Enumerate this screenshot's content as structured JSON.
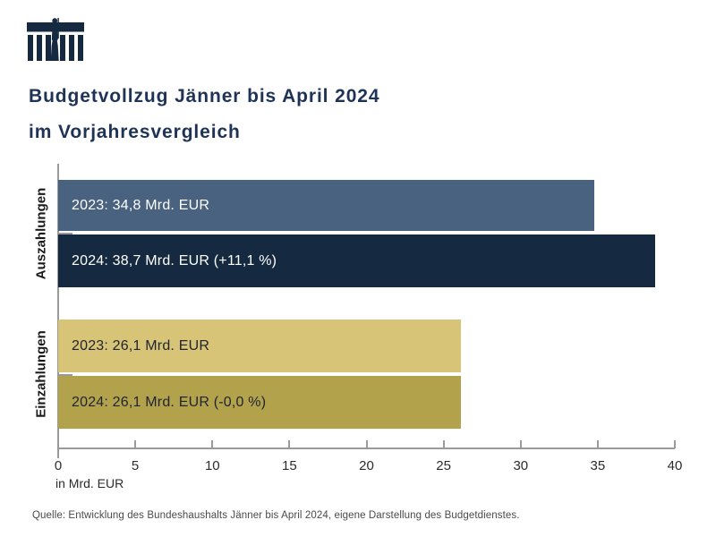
{
  "brand": {
    "navy": "#152a40"
  },
  "logo": {
    "name": "austrian-parliament-building",
    "color": "#152a40"
  },
  "title": {
    "line1": "Budgetvollzug Jänner bis April 2024",
    "line2": "im Vorjahresvergleich"
  },
  "chart_data": {
    "type": "bar",
    "orientation": "horizontal",
    "title": "Budgetvollzug Jänner bis April 2024 im Vorjahresvergleich",
    "xlabel": "in Mrd. EUR",
    "ylabel": "",
    "xlim": [
      0,
      40
    ],
    "x_ticks": [
      0,
      5,
      10,
      15,
      20,
      25,
      30,
      35,
      40
    ],
    "grid": false,
    "legend": null,
    "groups": [
      {
        "category": "Auszahlungen",
        "bars": [
          {
            "year": "2023",
            "label": "2023: 34,8 Mrd. EUR",
            "value": 34.8,
            "color": "#48627f",
            "text_color": "#ffffff"
          },
          {
            "year": "2024",
            "label": "2024: 38,7 Mrd. EUR (+11,1 %)",
            "value": 38.7,
            "color": "#152a40",
            "text_color": "#ffffff"
          }
        ]
      },
      {
        "category": "Einzahlungen",
        "bars": [
          {
            "year": "2023",
            "label": "2023: 26,1 Mrd. EUR",
            "value": 26.1,
            "color": "#d7c476",
            "text_color": "#1f2430"
          },
          {
            "year": "2024",
            "label": "2024: 26,1 Mrd. EUR (-0,0 %)",
            "value": 26.1,
            "color": "#b3a24c",
            "text_color": "#1f2430"
          }
        ]
      }
    ]
  },
  "source": "Quelle: Entwicklung des Bundeshaushalts Jänner bis April 2024, eigene Darstellung des Budgetdienstes."
}
